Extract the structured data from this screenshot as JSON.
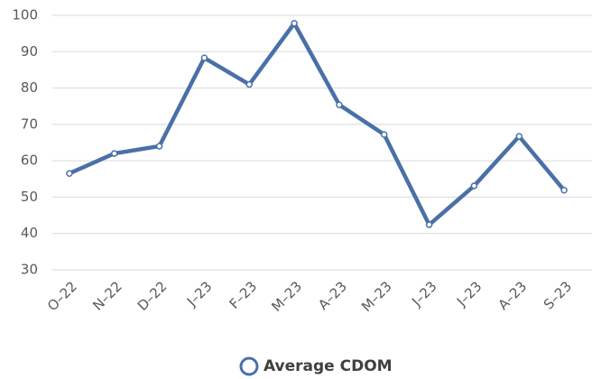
{
  "chart_data": {
    "type": "line",
    "categories": [
      "O–22",
      "N–22",
      "D–22",
      "J–23",
      "F–23",
      "M–23",
      "A–23",
      "M–23",
      "J–23",
      "J–23",
      "A–23",
      "S–23"
    ],
    "series": [
      {
        "name": "Average CDOM",
        "color": "#4a70a8",
        "values": [
          56.5,
          62,
          64,
          88.3,
          81,
          97.8,
          75.4,
          67.2,
          42.4,
          53.1,
          66.7,
          51.9
        ]
      }
    ],
    "ylim": [
      30,
      100
    ],
    "yticks": [
      30,
      40,
      50,
      60,
      70,
      80,
      90,
      100
    ],
    "grid": true,
    "legend": "bottom"
  }
}
